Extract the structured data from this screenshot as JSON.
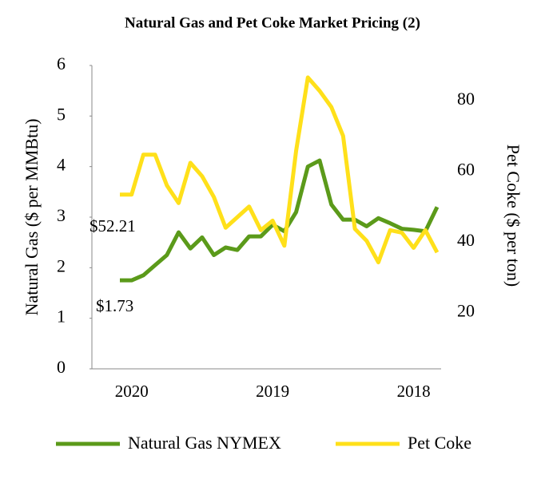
{
  "chart_data": {
    "type": "line",
    "title": "Natural Gas and Pet Coke Market Pricing (2)",
    "ylabel": "Natural Gas ($ per MMBtu)",
    "y2label": "Pet Coke ($ per ton)",
    "categories": [
      null,
      "2020",
      null,
      null,
      null,
      null,
      null,
      null,
      null,
      null,
      null,
      null,
      null,
      "2019",
      null,
      null,
      null,
      null,
      null,
      null,
      null,
      null,
      null,
      null,
      null,
      "2018",
      null,
      null
    ],
    "series": [
      {
        "name": "Natural Gas NYMEX",
        "color": "#5b9a1a",
        "axis": "y",
        "values": [
          1.75,
          1.75,
          1.85,
          2.05,
          2.25,
          2.7,
          2.38,
          2.6,
          2.25,
          2.4,
          2.35,
          2.62,
          2.62,
          2.85,
          2.72,
          3.1,
          4.0,
          4.12,
          3.25,
          2.95,
          2.95,
          2.82,
          2.98,
          2.88,
          2.77,
          2.75,
          2.72,
          3.2
        ]
      },
      {
        "name": "Pet Coke",
        "color": "#ffe01a",
        "axis": "y2",
        "values": [
          53.4,
          53.4,
          64.7,
          64.7,
          56,
          51,
          62.4,
          58.6,
          52.7,
          44,
          47,
          50,
          43.3,
          46,
          38.9,
          65.8,
          86.6,
          82.8,
          78.2,
          70,
          43.7,
          40.3,
          34.2,
          43.3,
          42.6,
          38.3,
          43.3,
          37
        ]
      }
    ],
    "annotations": [
      "$52.21",
      "$1.73"
    ],
    "ylim": [
      0,
      6
    ],
    "yticks": [
      0,
      1,
      2,
      3,
      4,
      5,
      6
    ],
    "y2lim": [
      4,
      90
    ],
    "y2ticks": [
      20,
      40,
      60,
      80
    ],
    "grid": false,
    "legend": "bottom"
  }
}
